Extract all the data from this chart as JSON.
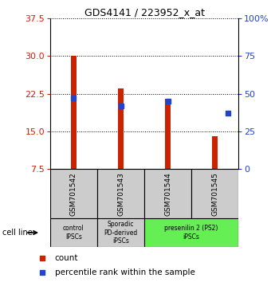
{
  "title": "GDS4141 / 223952_x_at",
  "samples": [
    "GSM701542",
    "GSM701543",
    "GSM701544",
    "GSM701545"
  ],
  "bar_values": [
    30.0,
    23.5,
    21.5,
    14.0
  ],
  "bar_bottom": 7.5,
  "percentile_values": [
    47.0,
    42.0,
    45.0,
    37.0
  ],
  "percentile_offsets": [
    0.0,
    0.0,
    0.0,
    0.28
  ],
  "ylim_left": [
    7.5,
    37.5
  ],
  "ylim_right": [
    0,
    100
  ],
  "yticks_left": [
    7.5,
    15.0,
    22.5,
    30.0,
    37.5
  ],
  "yticks_right": [
    0,
    25,
    50,
    75,
    100
  ],
  "bar_color": "#cc2200",
  "percentile_color": "#2244cc",
  "group_info": [
    {
      "label": "control\nIPSCs",
      "start": 0,
      "end": 0,
      "color": "#cccccc"
    },
    {
      "label": "Sporadic\nPD-derived\niPSCs",
      "start": 1,
      "end": 1,
      "color": "#cccccc"
    },
    {
      "label": "presenilin 2 (PS2)\niPSCs",
      "start": 2,
      "end": 3,
      "color": "#66ee55"
    }
  ],
  "cell_line_label": "cell line",
  "legend_count_label": "count",
  "legend_pct_label": "percentile rank within the sample",
  "bg_color": "#ffffff",
  "bar_width": 0.12
}
